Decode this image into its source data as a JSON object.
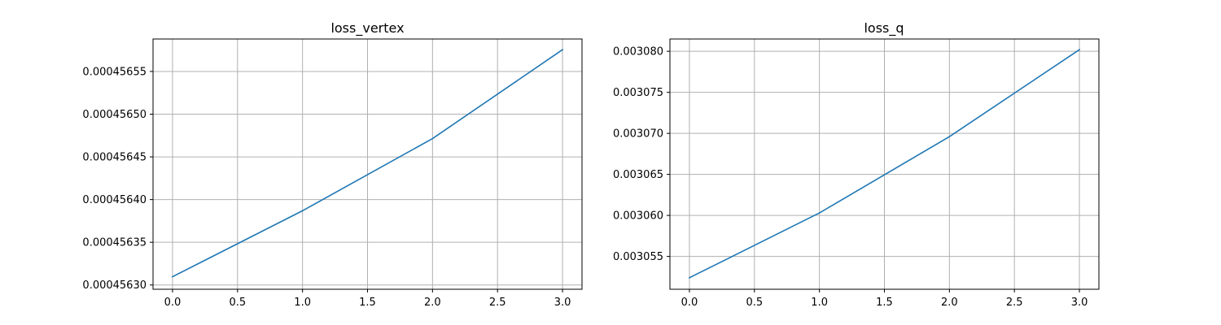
{
  "chart_data": [
    {
      "type": "line",
      "title": "loss_vertex",
      "xlabel": "",
      "ylabel": "",
      "x": [
        0,
        1,
        2,
        3
      ],
      "series": [
        {
          "values": [
            0.0004563097,
            0.0004563869,
            0.0004564714,
            0.0004565755
          ],
          "color": "#1f77b4"
        }
      ],
      "xlim": [
        -0.15,
        3.15
      ],
      "ylim": [
        0.000456295,
        0.000456588
      ],
      "xticks": [
        0.0,
        0.5,
        1.0,
        1.5,
        2.0,
        2.5,
        3.0
      ],
      "xtick_labels": [
        "0.0",
        "0.5",
        "1.0",
        "1.5",
        "2.0",
        "2.5",
        "3.0"
      ],
      "yticks": [
        0.0004563,
        0.00045635,
        0.0004564,
        0.00045645,
        0.0004565,
        0.00045655
      ],
      "ytick_labels": [
        "0.00045630",
        "0.00045635",
        "0.00045640",
        "0.00045645",
        "0.00045650",
        "0.00045655"
      ],
      "grid": true
    },
    {
      "type": "line",
      "title": "loss_q",
      "xlabel": "",
      "ylabel": "",
      "x": [
        0,
        1,
        2,
        3
      ],
      "series": [
        {
          "values": [
            0.0030524,
            0.0030603,
            0.0030696,
            0.0030802
          ],
          "color": "#1f77b4"
        }
      ],
      "xlim": [
        -0.15,
        3.15
      ],
      "ylim": [
        0.003051,
        0.0030815
      ],
      "xticks": [
        0.0,
        0.5,
        1.0,
        1.5,
        2.0,
        2.5,
        3.0
      ],
      "xtick_labels": [
        "0.0",
        "0.5",
        "1.0",
        "1.5",
        "2.0",
        "2.5",
        "3.0"
      ],
      "yticks": [
        0.003055,
        0.00306,
        0.003065,
        0.00307,
        0.003075,
        0.00308
      ],
      "ytick_labels": [
        "0.003055",
        "0.003060",
        "0.003065",
        "0.003070",
        "0.003075",
        "0.003080"
      ],
      "grid": true
    }
  ]
}
